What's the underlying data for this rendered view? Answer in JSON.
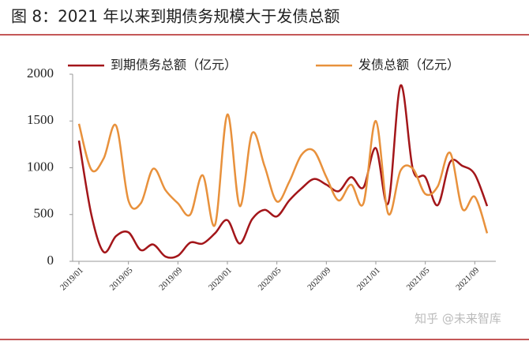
{
  "header": {
    "title": "图 8：2021 年以来到期债务规模大于发债总额"
  },
  "chart_data": {
    "type": "line",
    "categories": [
      "2019/01",
      null,
      null,
      null,
      "2019/05",
      null,
      null,
      null,
      "2019/09",
      null,
      null,
      null,
      "2020/01",
      null,
      null,
      null,
      "2020/05",
      null,
      null,
      null,
      "2020/09",
      null,
      null,
      null,
      "2021/01",
      null,
      null,
      null,
      "2021/05",
      null,
      null,
      null,
      "2021/09",
      null
    ],
    "series": [
      {
        "name": "到期债务总额（亿元）",
        "color": "#a3161a",
        "values": [
          1290,
          500,
          100,
          270,
          310,
          120,
          180,
          50,
          60,
          200,
          190,
          300,
          440,
          190,
          450,
          550,
          480,
          650,
          780,
          880,
          820,
          750,
          900,
          790,
          1210,
          620,
          1880,
          980,
          900,
          600,
          1060,
          1020,
          930,
          590
        ]
      },
      {
        "name": "发债总额（亿元）",
        "color": "#e8913c",
        "values": [
          1470,
          980,
          1100,
          1450,
          650,
          620,
          990,
          760,
          620,
          500,
          920,
          390,
          1570,
          590,
          1370,
          1020,
          640,
          850,
          1140,
          1180,
          900,
          650,
          820,
          620,
          1500,
          510,
          970,
          990,
          720,
          800,
          1160,
          560,
          690,
          300
        ]
      }
    ],
    "ylim": [
      0,
      2000
    ],
    "yticks": [
      0,
      500,
      1000,
      1500,
      2000
    ],
    "grid": false,
    "smooth": true,
    "legend": "top"
  },
  "watermark": "知乎 @未来智库"
}
